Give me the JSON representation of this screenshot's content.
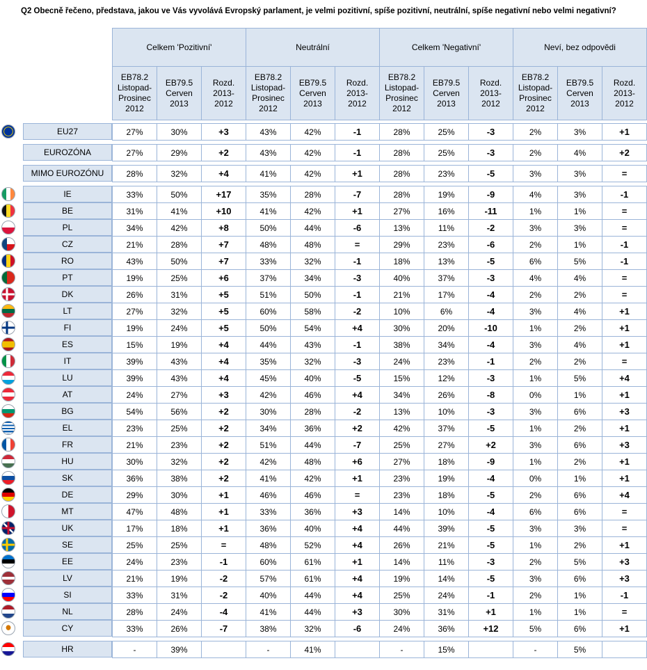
{
  "question": "Q2 Obecně řečeno, představa, jakou ve Vás vyvolává Evropský parlament, je velmi pozitivní, spíše pozitivní, neutrální, spíše negativní nebo velmi negativní?",
  "groups": [
    "Celkem 'Pozitivní'",
    "Neutrální",
    "Celkem 'Negativní'",
    "Neví, bez odpovědi"
  ],
  "subheaders": [
    [
      "EB78.2",
      "Listopad-",
      "Prosinec",
      "2012"
    ],
    [
      "EB79.5",
      "Cerven",
      "2013"
    ],
    [
      "Rozd.",
      "2013-",
      "2012"
    ]
  ],
  "rows": [
    {
      "label": "EU27",
      "flag": "eu",
      "v": [
        "27%",
        "30%",
        "+3",
        "43%",
        "42%",
        "-1",
        "28%",
        "25%",
        "-3",
        "2%",
        "3%",
        "+1"
      ]
    },
    {
      "label": "EUROZÓNA",
      "flag": "",
      "v": [
        "27%",
        "29%",
        "+2",
        "43%",
        "42%",
        "-1",
        "28%",
        "25%",
        "-3",
        "2%",
        "4%",
        "+2"
      ]
    },
    {
      "label": "MIMO EUROZÓNU",
      "flag": "",
      "v": [
        "28%",
        "32%",
        "+4",
        "41%",
        "42%",
        "+1",
        "28%",
        "23%",
        "-5",
        "3%",
        "3%",
        "="
      ]
    },
    {
      "label": "IE",
      "flag": "ie",
      "v": [
        "33%",
        "50%",
        "+17",
        "35%",
        "28%",
        "-7",
        "28%",
        "19%",
        "-9",
        "4%",
        "3%",
        "-1"
      ]
    },
    {
      "label": "BE",
      "flag": "be",
      "v": [
        "31%",
        "41%",
        "+10",
        "41%",
        "42%",
        "+1",
        "27%",
        "16%",
        "-11",
        "1%",
        "1%",
        "="
      ]
    },
    {
      "label": "PL",
      "flag": "pl",
      "v": [
        "34%",
        "42%",
        "+8",
        "50%",
        "44%",
        "-6",
        "13%",
        "11%",
        "-2",
        "3%",
        "3%",
        "="
      ]
    },
    {
      "label": "CZ",
      "flag": "cz",
      "v": [
        "21%",
        "28%",
        "+7",
        "48%",
        "48%",
        "=",
        "29%",
        "23%",
        "-6",
        "2%",
        "1%",
        "-1"
      ]
    },
    {
      "label": "RO",
      "flag": "ro",
      "v": [
        "43%",
        "50%",
        "+7",
        "33%",
        "32%",
        "-1",
        "18%",
        "13%",
        "-5",
        "6%",
        "5%",
        "-1"
      ]
    },
    {
      "label": "PT",
      "flag": "pt",
      "v": [
        "19%",
        "25%",
        "+6",
        "37%",
        "34%",
        "-3",
        "40%",
        "37%",
        "-3",
        "4%",
        "4%",
        "="
      ]
    },
    {
      "label": "DK",
      "flag": "dk",
      "v": [
        "26%",
        "31%",
        "+5",
        "51%",
        "50%",
        "-1",
        "21%",
        "17%",
        "-4",
        "2%",
        "2%",
        "="
      ]
    },
    {
      "label": "LT",
      "flag": "lt",
      "v": [
        "27%",
        "32%",
        "+5",
        "60%",
        "58%",
        "-2",
        "10%",
        "6%",
        "-4",
        "3%",
        "4%",
        "+1"
      ]
    },
    {
      "label": "FI",
      "flag": "fi",
      "v": [
        "19%",
        "24%",
        "+5",
        "50%",
        "54%",
        "+4",
        "30%",
        "20%",
        "-10",
        "1%",
        "2%",
        "+1"
      ]
    },
    {
      "label": "ES",
      "flag": "es",
      "v": [
        "15%",
        "19%",
        "+4",
        "44%",
        "43%",
        "-1",
        "38%",
        "34%",
        "-4",
        "3%",
        "4%",
        "+1"
      ]
    },
    {
      "label": "IT",
      "flag": "it",
      "v": [
        "39%",
        "43%",
        "+4",
        "35%",
        "32%",
        "-3",
        "24%",
        "23%",
        "-1",
        "2%",
        "2%",
        "="
      ]
    },
    {
      "label": "LU",
      "flag": "lu",
      "v": [
        "39%",
        "43%",
        "+4",
        "45%",
        "40%",
        "-5",
        "15%",
        "12%",
        "-3",
        "1%",
        "5%",
        "+4"
      ]
    },
    {
      "label": "AT",
      "flag": "at",
      "v": [
        "24%",
        "27%",
        "+3",
        "42%",
        "46%",
        "+4",
        "34%",
        "26%",
        "-8",
        "0%",
        "1%",
        "+1"
      ]
    },
    {
      "label": "BG",
      "flag": "bg",
      "v": [
        "54%",
        "56%",
        "+2",
        "30%",
        "28%",
        "-2",
        "13%",
        "10%",
        "-3",
        "3%",
        "6%",
        "+3"
      ]
    },
    {
      "label": "EL",
      "flag": "el",
      "v": [
        "23%",
        "25%",
        "+2",
        "34%",
        "36%",
        "+2",
        "42%",
        "37%",
        "-5",
        "1%",
        "2%",
        "+1"
      ]
    },
    {
      "label": "FR",
      "flag": "fr",
      "v": [
        "21%",
        "23%",
        "+2",
        "51%",
        "44%",
        "-7",
        "25%",
        "27%",
        "+2",
        "3%",
        "6%",
        "+3"
      ]
    },
    {
      "label": "HU",
      "flag": "hu",
      "v": [
        "30%",
        "32%",
        "+2",
        "42%",
        "48%",
        "+6",
        "27%",
        "18%",
        "-9",
        "1%",
        "2%",
        "+1"
      ]
    },
    {
      "label": "SK",
      "flag": "sk",
      "v": [
        "36%",
        "38%",
        "+2",
        "41%",
        "42%",
        "+1",
        "23%",
        "19%",
        "-4",
        "0%",
        "1%",
        "+1"
      ]
    },
    {
      "label": "DE",
      "flag": "de",
      "v": [
        "29%",
        "30%",
        "+1",
        "46%",
        "46%",
        "=",
        "23%",
        "18%",
        "-5",
        "2%",
        "6%",
        "+4"
      ]
    },
    {
      "label": "MT",
      "flag": "mt",
      "v": [
        "47%",
        "48%",
        "+1",
        "33%",
        "36%",
        "+3",
        "14%",
        "10%",
        "-4",
        "6%",
        "6%",
        "="
      ]
    },
    {
      "label": "UK",
      "flag": "uk",
      "v": [
        "17%",
        "18%",
        "+1",
        "36%",
        "40%",
        "+4",
        "44%",
        "39%",
        "-5",
        "3%",
        "3%",
        "="
      ]
    },
    {
      "label": "SE",
      "flag": "se",
      "v": [
        "25%",
        "25%",
        "=",
        "48%",
        "52%",
        "+4",
        "26%",
        "21%",
        "-5",
        "1%",
        "2%",
        "+1"
      ]
    },
    {
      "label": "EE",
      "flag": "ee",
      "v": [
        "24%",
        "23%",
        "-1",
        "60%",
        "61%",
        "+1",
        "14%",
        "11%",
        "-3",
        "2%",
        "5%",
        "+3"
      ]
    },
    {
      "label": "LV",
      "flag": "lv",
      "v": [
        "21%",
        "19%",
        "-2",
        "57%",
        "61%",
        "+4",
        "19%",
        "14%",
        "-5",
        "3%",
        "6%",
        "+3"
      ]
    },
    {
      "label": "SI",
      "flag": "si",
      "v": [
        "33%",
        "31%",
        "-2",
        "40%",
        "44%",
        "+4",
        "25%",
        "24%",
        "-1",
        "2%",
        "1%",
        "-1"
      ]
    },
    {
      "label": "NL",
      "flag": "nl",
      "v": [
        "28%",
        "24%",
        "-4",
        "41%",
        "44%",
        "+3",
        "30%",
        "31%",
        "+1",
        "1%",
        "1%",
        "="
      ]
    },
    {
      "label": "CY",
      "flag": "cy",
      "v": [
        "33%",
        "26%",
        "-7",
        "38%",
        "32%",
        "-6",
        "24%",
        "36%",
        "+12",
        "5%",
        "6%",
        "+1"
      ]
    },
    {
      "label": "HR",
      "flag": "hr",
      "v": [
        "-",
        "39%",
        "",
        "-",
        "41%",
        "",
        "-",
        "15%",
        "",
        "-",
        "5%",
        ""
      ]
    }
  ]
}
